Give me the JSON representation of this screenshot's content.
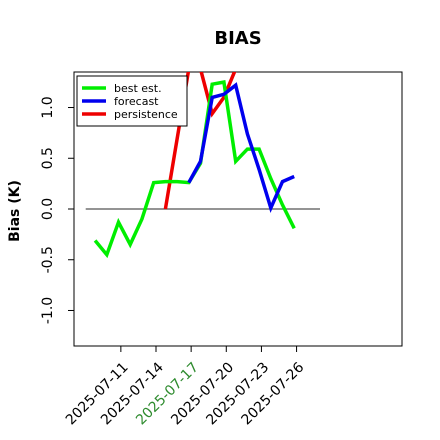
{
  "chart_data": {
    "type": "line",
    "title": "BIAS",
    "ylabel": "Bias (K)",
    "xlabel": "",
    "ylim": [
      -1.35,
      1.35
    ],
    "yticks": [
      -1.0,
      -0.5,
      0.0,
      0.5,
      1.0
    ],
    "ytick_labels": [
      "-1.0",
      "-0.5",
      "0.0",
      "0.5",
      "1.0"
    ],
    "xlim": [
      0,
      28
    ],
    "xticks": [
      {
        "x": 4,
        "label": "2025-07-11",
        "color": "#000000"
      },
      {
        "x": 7,
        "label": "2025-07-14",
        "color": "#000000"
      },
      {
        "x": 10,
        "label": "2025-07-17",
        "color": "#2e8b2e"
      },
      {
        "x": 13,
        "label": "2025-07-20",
        "color": "#000000"
      },
      {
        "x": 16,
        "label": "2025-07-23",
        "color": "#000000"
      },
      {
        "x": 19,
        "label": "2025-07-26",
        "color": "#000000"
      }
    ],
    "zero_line": {
      "y": 0,
      "x_start": 1.0,
      "x_end": 21.0,
      "color": "#555555"
    },
    "legend_position": "upper-left",
    "series": [
      {
        "name": "best est.",
        "color": "#00ee00",
        "x": [
          1.8,
          2.8,
          3.8,
          4.8,
          5.8,
          6.8,
          7.8,
          8.8,
          9.8,
          10.8,
          11.8,
          12.8,
          13.8,
          14.8,
          15.8,
          16.8,
          17.8,
          18.8,
          19.8,
          20.8
        ],
        "y": [
          -0.31,
          -0.45,
          -0.13,
          -0.35,
          -0.1,
          0.26,
          0.27,
          0.27,
          0.26,
          0.45,
          1.23,
          1.25,
          0.47,
          0.59,
          0.59,
          0.3,
          0.04,
          -0.19,
          null,
          null
        ]
      },
      {
        "name": "forecast",
        "color": "#0000ee",
        "x": [
          9.8,
          10.8,
          11.8,
          12.8,
          13.8,
          14.8,
          15.8,
          16.8,
          17.8,
          18.8
        ],
        "y": [
          0.26,
          0.47,
          1.1,
          1.13,
          1.22,
          0.74,
          0.39,
          0.01,
          0.27,
          0.32
        ]
      },
      {
        "name": "persistence",
        "color": "#ee0000",
        "x": [
          7.8,
          9.8,
          10.8,
          11.8,
          12.8,
          13.8
        ],
        "y": [
          0.0,
          1.38,
          1.38,
          0.94,
          1.1,
          1.38
        ]
      }
    ]
  }
}
